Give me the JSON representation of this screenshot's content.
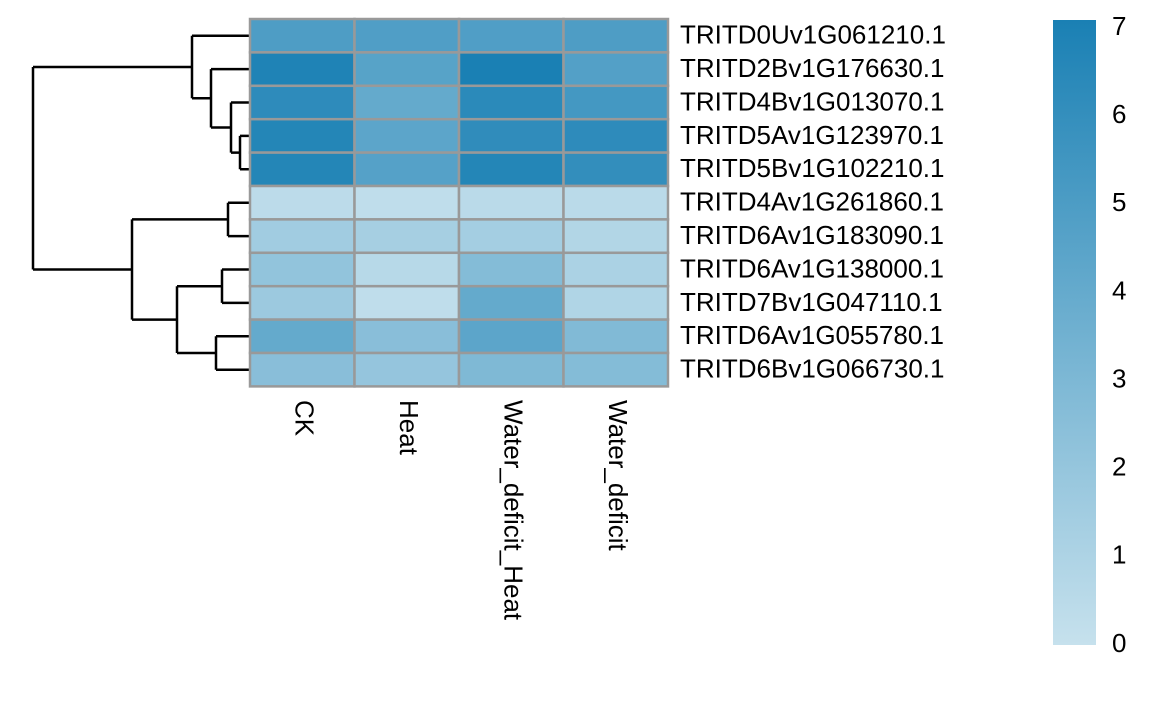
{
  "chart_data": {
    "type": "heatmap",
    "x_categories": [
      "CK",
      "Heat",
      "Water_deficit_Heat",
      "Water_deficit"
    ],
    "y_categories": [
      "TRITD0Uv1G061210.1",
      "TRITD2Bv1G176630.1",
      "TRITD4Bv1G013070.1",
      "TRITD5Av1G123970.1",
      "TRITD5Bv1G102210.1",
      "TRITD4Av1G261860.1",
      "TRITD6Av1G183090.1",
      "TRITD6Av1G138000.1",
      "TRITD7Bv1G047110.1",
      "TRITD6Av1G055780.1",
      "TRITD6Bv1G066730.1"
    ],
    "values": [
      [
        4.9,
        4.8,
        4.8,
        4.9
      ],
      [
        6.8,
        4.5,
        7.0,
        4.7
      ],
      [
        6.2,
        4.0,
        6.3,
        5.3
      ],
      [
        6.6,
        4.3,
        6.1,
        6.2
      ],
      [
        6.6,
        4.6,
        6.6,
        6.0
      ],
      [
        0.4,
        0.3,
        0.5,
        0.5
      ],
      [
        1.5,
        1.3,
        1.4,
        0.8
      ],
      [
        2.1,
        0.6,
        2.7,
        1.1
      ],
      [
        1.7,
        0.3,
        4.0,
        0.9
      ],
      [
        4.0,
        2.5,
        4.3,
        2.8
      ],
      [
        2.5,
        2.0,
        2.9,
        2.7
      ]
    ],
    "colors": [
      "#c6e1ed",
      "#1a80b4"
    ],
    "clim": [
      0,
      7
    ],
    "cticks": [
      0,
      1,
      2,
      3,
      4,
      5,
      6,
      7
    ]
  }
}
